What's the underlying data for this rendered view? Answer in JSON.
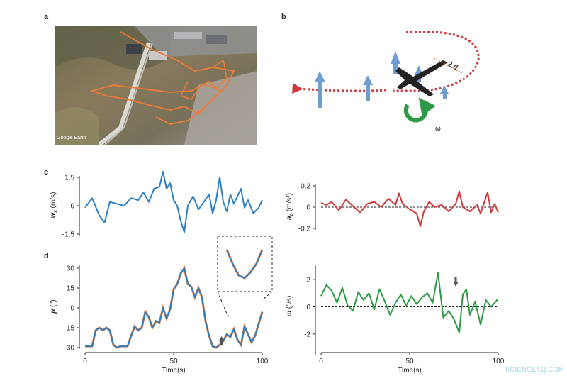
{
  "panels": {
    "a": "a",
    "b": "b",
    "c": "c",
    "d": "d"
  },
  "map": {
    "attribution": "Google Earth"
  },
  "diagram": {
    "omega_label": "ω",
    "span_label": "2 d"
  },
  "colors": {
    "blue": "#2e7fc0",
    "red": "#d0383c",
    "green": "#2e9a45",
    "orange": "#ee7c3b",
    "arrow_blue": "#6f9fd2",
    "dark": "#333333"
  },
  "watermark": "SCIENCEAQ.COM",
  "chart_data": [
    {
      "id": "wz",
      "type": "line",
      "xlabel": "",
      "ylabel_main": "w",
      "ylabel_sub": "z",
      "ylabel_unit": " (m/s)",
      "xlim": [
        0,
        100
      ],
      "ylim": [
        -1.5,
        1.5
      ],
      "yticks": [
        -1.5,
        0,
        1.5
      ],
      "ytick_labels": [
        "-1.5",
        "0",
        "1.5"
      ],
      "xticks": [],
      "xtick_labels": [],
      "zero_line": false,
      "color": "#2e7fc0",
      "series": [
        {
          "x": [
            0,
            4,
            8,
            11,
            14,
            18,
            22,
            26,
            30,
            33,
            36,
            39,
            42,
            44,
            46,
            48,
            50,
            52,
            54,
            56,
            58,
            61,
            64,
            67,
            70,
            72,
            74,
            76,
            78,
            80,
            82,
            84,
            86,
            88,
            90,
            92,
            95,
            98,
            100
          ],
          "y": [
            -0.1,
            0.4,
            -0.5,
            -0.9,
            0.2,
            0.1,
            0.0,
            0.4,
            0.3,
            0.7,
            0.2,
            0.9,
            1.0,
            1.8,
            0.9,
            1.2,
            0.3,
            0.0,
            -0.8,
            -1.4,
            0.0,
            0.5,
            -0.2,
            0.2,
            0.6,
            -0.4,
            0.3,
            1.5,
            0.2,
            -0.3,
            0.6,
            0.1,
            0.5,
            0.9,
            -0.1,
            0.3,
            -0.4,
            -0.1,
            0.3
          ]
        }
      ]
    },
    {
      "id": "az",
      "type": "line",
      "xlabel": "",
      "ylabel_main": "a",
      "ylabel_sub": "z",
      "ylabel_unit": " (m/s²)",
      "xlim": [
        0,
        100
      ],
      "ylim": [
        -0.2,
        0.2
      ],
      "yticks": [
        -0.2,
        0,
        0.2
      ],
      "ytick_labels": [
        "-0.2",
        "0",
        "0.2"
      ],
      "xticks": [],
      "xtick_labels": [],
      "zero_line": true,
      "color": "#d0383c",
      "series": [
        {
          "x": [
            0,
            3,
            6,
            10,
            14,
            18,
            22,
            26,
            30,
            34,
            38,
            42,
            44,
            46,
            50,
            54,
            56,
            58,
            61,
            64,
            68,
            72,
            76,
            78,
            80,
            84,
            88,
            90,
            94,
            96,
            98,
            100
          ],
          "y": [
            0.04,
            0.02,
            0.05,
            -0.03,
            0.07,
            0.01,
            -0.05,
            0.03,
            0.05,
            0.0,
            0.08,
            0.02,
            0.13,
            0.03,
            -0.02,
            -0.06,
            -0.18,
            -0.04,
            0.05,
            0.0,
            0.02,
            -0.04,
            0.03,
            0.15,
            0.0,
            -0.04,
            0.02,
            -0.06,
            0.14,
            -0.05,
            0.03,
            -0.05
          ]
        }
      ]
    },
    {
      "id": "mu",
      "type": "line",
      "xlabel": "Time(s)",
      "ylabel_main": "μ",
      "ylabel_sub": "",
      "ylabel_unit": " (°)",
      "xlim": [
        0,
        100
      ],
      "ylim": [
        -30,
        30
      ],
      "yticks": [
        -30,
        -15,
        0,
        15,
        30
      ],
      "ytick_labels": [
        "-30",
        "-15",
        "0",
        "15",
        "30"
      ],
      "xticks": [
        0,
        50,
        100
      ],
      "xtick_labels": [
        "0",
        "50",
        "100"
      ],
      "zero_line": false,
      "color": "#2e7fc0",
      "series": [
        {
          "x": [
            0,
            2,
            4,
            6,
            8,
            10,
            12,
            14,
            16,
            18,
            20,
            22,
            24,
            26,
            28,
            30,
            32,
            34,
            36,
            38,
            40,
            42,
            44,
            46,
            48,
            50,
            52,
            54,
            56,
            58,
            60,
            62,
            64,
            66,
            68,
            70,
            72,
            74,
            76,
            78,
            80,
            82,
            84,
            86,
            88,
            90,
            92,
            94,
            96,
            98,
            100
          ],
          "y": [
            -29,
            -29,
            -29,
            -17,
            -15,
            -17,
            -15,
            -17,
            -28,
            -30,
            -29,
            -29,
            -29,
            -21,
            -14,
            -17,
            -15,
            -3,
            -7,
            -15,
            -10,
            -11,
            0,
            -8,
            -1,
            14,
            18,
            26,
            30,
            18,
            16,
            8,
            15,
            8,
            -10,
            -21,
            -29,
            -30,
            -28,
            -25,
            -20,
            -22,
            -16,
            -24,
            -28,
            -14,
            -20,
            -26,
            -21,
            -12,
            -3
          ]
        }
      ],
      "arrow_x": 77,
      "inset": {
        "x": [
          72,
          74,
          76,
          78,
          80,
          82,
          84
        ],
        "y": [
          -20,
          -25,
          -29,
          -30,
          -28,
          -25,
          -20
        ]
      }
    },
    {
      "id": "omega",
      "type": "line",
      "xlabel": "Time(s)",
      "ylabel_main": "ω",
      "ylabel_sub": "",
      "ylabel_unit": " (°/s)",
      "xlim": [
        0,
        100
      ],
      "ylim": [
        -3,
        3
      ],
      "yticks": [
        -2,
        0,
        2
      ],
      "ytick_labels": [
        "-2",
        "0",
        "2"
      ],
      "xticks": [
        0,
        50,
        100
      ],
      "xtick_labels": [
        "0",
        "50",
        "100"
      ],
      "zero_line": true,
      "color": "#2e9a45",
      "series": [
        {
          "x": [
            0,
            3,
            6,
            9,
            12,
            15,
            18,
            21,
            24,
            27,
            30,
            33,
            36,
            39,
            42,
            45,
            48,
            51,
            54,
            57,
            60,
            63,
            66,
            69,
            72,
            75,
            78,
            80,
            82,
            84,
            87,
            90,
            93,
            96,
            100
          ],
          "y": [
            0.8,
            1.6,
            1.2,
            0.3,
            1.4,
            0.1,
            -0.3,
            1.1,
            0.5,
            1.0,
            -0.2,
            1.3,
            0.4,
            -0.6,
            0.3,
            0.9,
            0.1,
            0.8,
            0.2,
            0.7,
            1.0,
            0.3,
            2.5,
            -0.8,
            -0.3,
            -0.9,
            -1.9,
            0.9,
            1.3,
            -0.6,
            0.4,
            -1.3,
            0.5,
            0.0,
            0.6
          ]
        }
      ],
      "arrow_x": 76
    }
  ]
}
